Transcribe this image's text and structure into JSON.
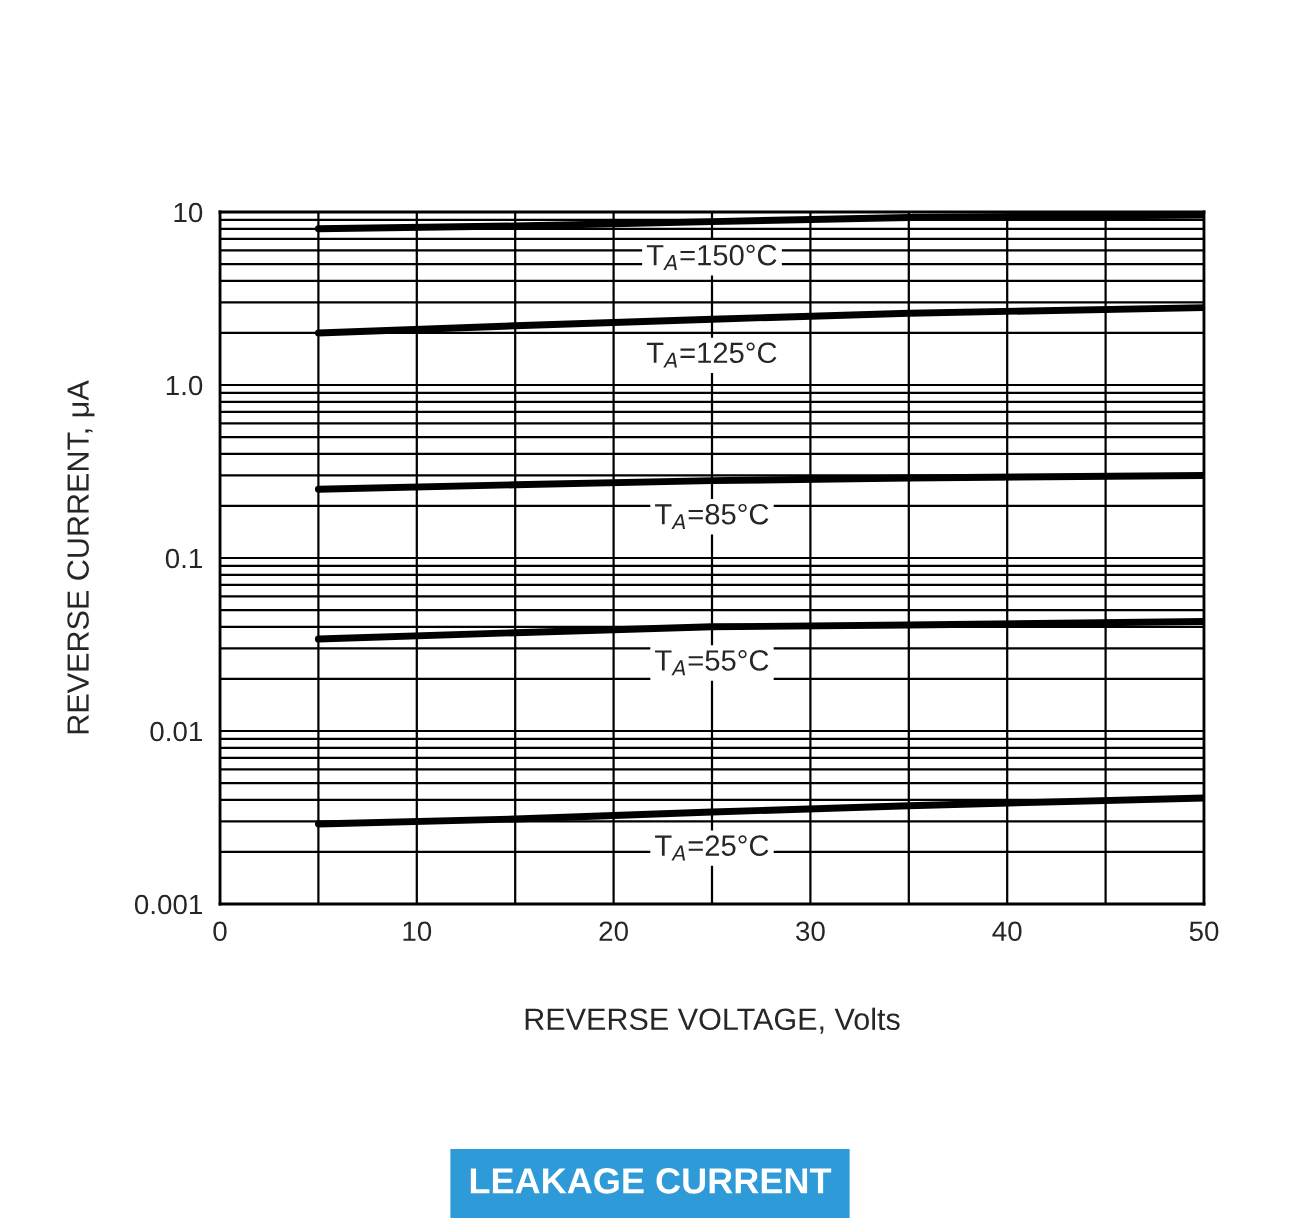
{
  "chart_data": {
    "type": "line",
    "title": "LEAKAGE CURRENT",
    "xlabel": "REVERSE VOLTAGE, Volts",
    "ylabel": "REVERSE CURRENT, μA",
    "log": "y",
    "grid": true,
    "legend": false,
    "marker": "none",
    "line_style": "solid",
    "xlim": [
      0,
      50
    ],
    "xticks": [
      0,
      10,
      20,
      30,
      40,
      50
    ],
    "ylim": [
      0.001,
      10
    ],
    "yticks": [
      {
        "value": 0.001,
        "label": "0.001"
      },
      {
        "value": 0.01,
        "label": "0.01"
      },
      {
        "value": 0.1,
        "label": "0.1"
      },
      {
        "value": 1,
        "label": "1.0"
      },
      {
        "value": 10,
        "label": "10"
      }
    ],
    "series": [
      {
        "name": "T$_{A}$=150°C",
        "color": "#000000",
        "x": [
          5,
          15,
          25,
          35,
          50
        ],
        "values": [
          8,
          8.3,
          8.8,
          9.3,
          9.6
        ]
      },
      {
        "name": "T$_{A}$=125°C",
        "color": "#000000",
        "x": [
          5,
          15,
          25,
          35,
          50
        ],
        "values": [
          2.0,
          2.2,
          2.4,
          2.6,
          2.8
        ]
      },
      {
        "name": "T$_{A}$=85°C",
        "color": "#000000",
        "x": [
          5,
          15,
          25,
          35,
          50
        ],
        "values": [
          0.25,
          0.265,
          0.28,
          0.29,
          0.3
        ]
      },
      {
        "name": "T$_{A}$=55°C",
        "color": "#000000",
        "x": [
          5,
          15,
          25,
          35,
          50
        ],
        "values": [
          0.034,
          0.037,
          0.04,
          0.041,
          0.043
        ]
      },
      {
        "name": "T$_{A}$=25°C",
        "color": "#000000",
        "x": [
          5,
          15,
          25,
          35,
          50
        ],
        "values": [
          0.0029,
          0.0031,
          0.0034,
          0.0037,
          0.0041
        ]
      }
    ]
  }
}
